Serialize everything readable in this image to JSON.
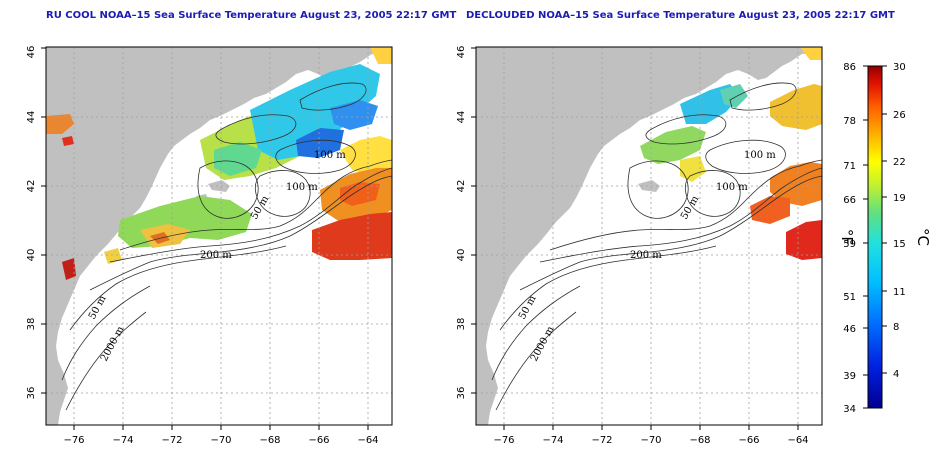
{
  "panels": [
    {
      "id": "left",
      "title": "RU COOL NOAA–15 Sea Surface Temperature August 23, 2005 22:17 GMT",
      "contour_labels": [
        "100 m",
        "100 m",
        "50 m",
        "200 m",
        "50 m",
        "2000 m"
      ]
    },
    {
      "id": "right",
      "title": "DECLOUDED NOAA–15 Sea Surface Temperature August 23, 2005 22:17 GMT",
      "contour_labels": [
        "100 m",
        "100 m",
        "50 m",
        "200 m",
        "50 m",
        "2000 m"
      ]
    }
  ],
  "axes": {
    "lon_ticks": [
      "−76",
      "−74",
      "−72",
      "−70",
      "−68",
      "−66",
      "−64"
    ],
    "lat_ticks": [
      "36",
      "38",
      "40",
      "42",
      "44",
      "46"
    ],
    "lon_range": [
      -77,
      -63
    ],
    "lat_range": [
      35,
      46
    ]
  },
  "colorbar": {
    "fahrenheit_ticks": [
      "86",
      "78",
      "71",
      "66",
      "59",
      "51",
      "46",
      "39",
      "34"
    ],
    "celsius_ticks": [
      "30",
      "26",
      "22",
      "19",
      "15",
      "11",
      "8",
      "4"
    ],
    "fahrenheit_label": "°F",
    "celsius_label": "°C",
    "range_c": [
      1,
      30
    ]
  },
  "colors": {
    "land": "#c0c0c0",
    "ocean": "#ffffff",
    "title": "#1c1cb4",
    "grid": "#a0a0a0"
  }
}
